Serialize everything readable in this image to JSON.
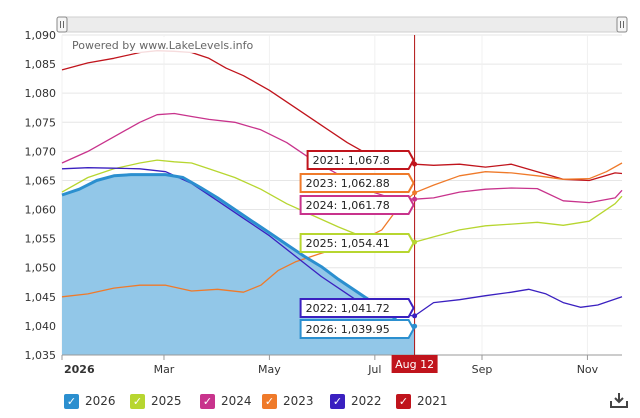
{
  "watermark": "Powered by www.LakeLevels.info",
  "crosshair_label": "Aug 12",
  "legend": [
    {
      "label": "2026",
      "color": "#2b8fcf"
    },
    {
      "label": "2025",
      "color": "#b7d630"
    },
    {
      "label": "2024",
      "color": "#c8338c"
    },
    {
      "label": "2023",
      "color": "#ef7a2a"
    },
    {
      "label": "2022",
      "color": "#3a20c0"
    },
    {
      "label": "2021",
      "color": "#c0141c"
    }
  ],
  "icons": {
    "download": "download-icon",
    "check": "check-icon",
    "scroll_handle": "grip-handle-icon"
  },
  "chart_data": {
    "type": "line",
    "ylim": [
      1035,
      1090
    ],
    "y_ticks": [
      "1,035",
      "1,040",
      "1,045",
      "1,050",
      "1,055",
      "1,060",
      "1,065",
      "1,070",
      "1,075",
      "1,080",
      "1,085",
      "1,090"
    ],
    "x_ticks": [
      {
        "label": "2026",
        "day": 0,
        "bold": true
      },
      {
        "label": "Mar",
        "day": 59
      },
      {
        "label": "May",
        "day": 120
      },
      {
        "label": "Jul",
        "day": 181
      },
      {
        "label": "Sep",
        "day": 243
      },
      {
        "label": "Nov",
        "day": 304
      }
    ],
    "x_range_days": [
      0,
      324
    ],
    "crosshair_day": 204,
    "tooltips": [
      {
        "series": "2021",
        "text": "2021: 1,067.8",
        "y": 1067.8
      },
      {
        "series": "2023",
        "text": "2023: 1,062.88",
        "y": 1062.88
      },
      {
        "series": "2024",
        "text": "2024: 1,061.78",
        "y": 1061.78
      },
      {
        "series": "2025",
        "text": "2025: 1,054.41",
        "y": 1054.41
      },
      {
        "series": "2022",
        "text": "2022: 1,041.72",
        "y": 1041.72
      },
      {
        "series": "2026",
        "text": "2026: 1,039.95",
        "y": 1039.95
      }
    ],
    "series": [
      {
        "name": "2021",
        "color": "#c0141c",
        "x": [
          0,
          15,
          30,
          45,
          55,
          65,
          75,
          85,
          95,
          105,
          120,
          135,
          150,
          165,
          180,
          195,
          204,
          215,
          230,
          245,
          260,
          275,
          290,
          305,
          320,
          324
        ],
        "y": [
          1084,
          1085.2,
          1086,
          1087,
          1087.3,
          1087.2,
          1087,
          1086,
          1084.3,
          1083,
          1080.5,
          1077.5,
          1074.5,
          1071.5,
          1069,
          1068,
          1067.8,
          1067.6,
          1067.8,
          1067.3,
          1067.8,
          1066.5,
          1065.2,
          1065,
          1066.3,
          1066.2
        ]
      },
      {
        "name": "2024",
        "color": "#c8338c",
        "x": [
          0,
          15,
          30,
          45,
          55,
          65,
          75,
          85,
          100,
          115,
          130,
          145,
          160,
          175,
          190,
          204,
          215,
          230,
          245,
          260,
          275,
          290,
          305,
          320,
          324
        ],
        "y": [
          1068,
          1070,
          1072.5,
          1075,
          1076.3,
          1076.5,
          1076,
          1075.5,
          1075,
          1073.7,
          1071.5,
          1068.5,
          1066,
          1063.5,
          1062,
          1061.78,
          1062,
          1063,
          1063.5,
          1063.7,
          1063.6,
          1061.5,
          1061.2,
          1062,
          1063.3
        ]
      },
      {
        "name": "2025",
        "color": "#b7d630",
        "x": [
          0,
          15,
          30,
          45,
          55,
          65,
          75,
          85,
          100,
          115,
          130,
          145,
          160,
          175,
          190,
          204,
          215,
          230,
          245,
          260,
          275,
          290,
          305,
          320,
          324
        ],
        "y": [
          1063,
          1065.5,
          1067,
          1068,
          1068.5,
          1068.2,
          1068,
          1067,
          1065.5,
          1063.5,
          1061,
          1059,
          1057,
          1055.2,
          1054.5,
          1054.41,
          1055.3,
          1056.5,
          1057.2,
          1057.5,
          1057.8,
          1057.3,
          1058,
          1061,
          1062.3
        ]
      },
      {
        "name": "2023",
        "color": "#ef7a2a",
        "x": [
          0,
          15,
          30,
          45,
          60,
          75,
          90,
          105,
          115,
          125,
          135,
          150,
          165,
          175,
          185,
          195,
          204,
          215,
          230,
          245,
          260,
          275,
          290,
          305,
          315,
          324
        ],
        "y": [
          1045,
          1045.5,
          1046.5,
          1047,
          1047,
          1046,
          1046.3,
          1045.8,
          1047,
          1049.5,
          1051,
          1052.5,
          1053.8,
          1055,
          1056.5,
          1060.5,
          1062.88,
          1064.2,
          1065.8,
          1066.5,
          1066.3,
          1065.8,
          1065.2,
          1065.3,
          1066.5,
          1068
        ]
      },
      {
        "name": "2022",
        "color": "#3a20c0",
        "x": [
          0,
          15,
          30,
          45,
          60,
          75,
          90,
          105,
          120,
          135,
          150,
          165,
          175,
          185,
          195,
          204,
          215,
          230,
          245,
          260,
          270,
          280,
          290,
          300,
          310,
          324
        ],
        "y": [
          1067,
          1067.2,
          1067.1,
          1067,
          1066.5,
          1064.5,
          1061.5,
          1058.5,
          1055.5,
          1052,
          1048.5,
          1045.5,
          1043.5,
          1042.2,
          1041.9,
          1041.72,
          1044,
          1044.5,
          1045.2,
          1045.8,
          1046.3,
          1045.5,
          1044,
          1043.2,
          1043.6,
          1045
        ]
      },
      {
        "name": "2026",
        "color": "#2b8fcf",
        "fill": "#92c7e8",
        "x": [
          0,
          10,
          20,
          30,
          40,
          50,
          60,
          70,
          80,
          90,
          100,
          110,
          120,
          130,
          140,
          150,
          160,
          170,
          180,
          190,
          195,
          204
        ],
        "y": [
          1062.5,
          1063.5,
          1065,
          1065.8,
          1066,
          1066,
          1066,
          1065.5,
          1063.8,
          1062,
          1060,
          1058,
          1056,
          1054,
          1052,
          1050.2,
          1048,
          1046,
          1044,
          1042,
          1040.5,
          1039.95
        ]
      }
    ]
  }
}
